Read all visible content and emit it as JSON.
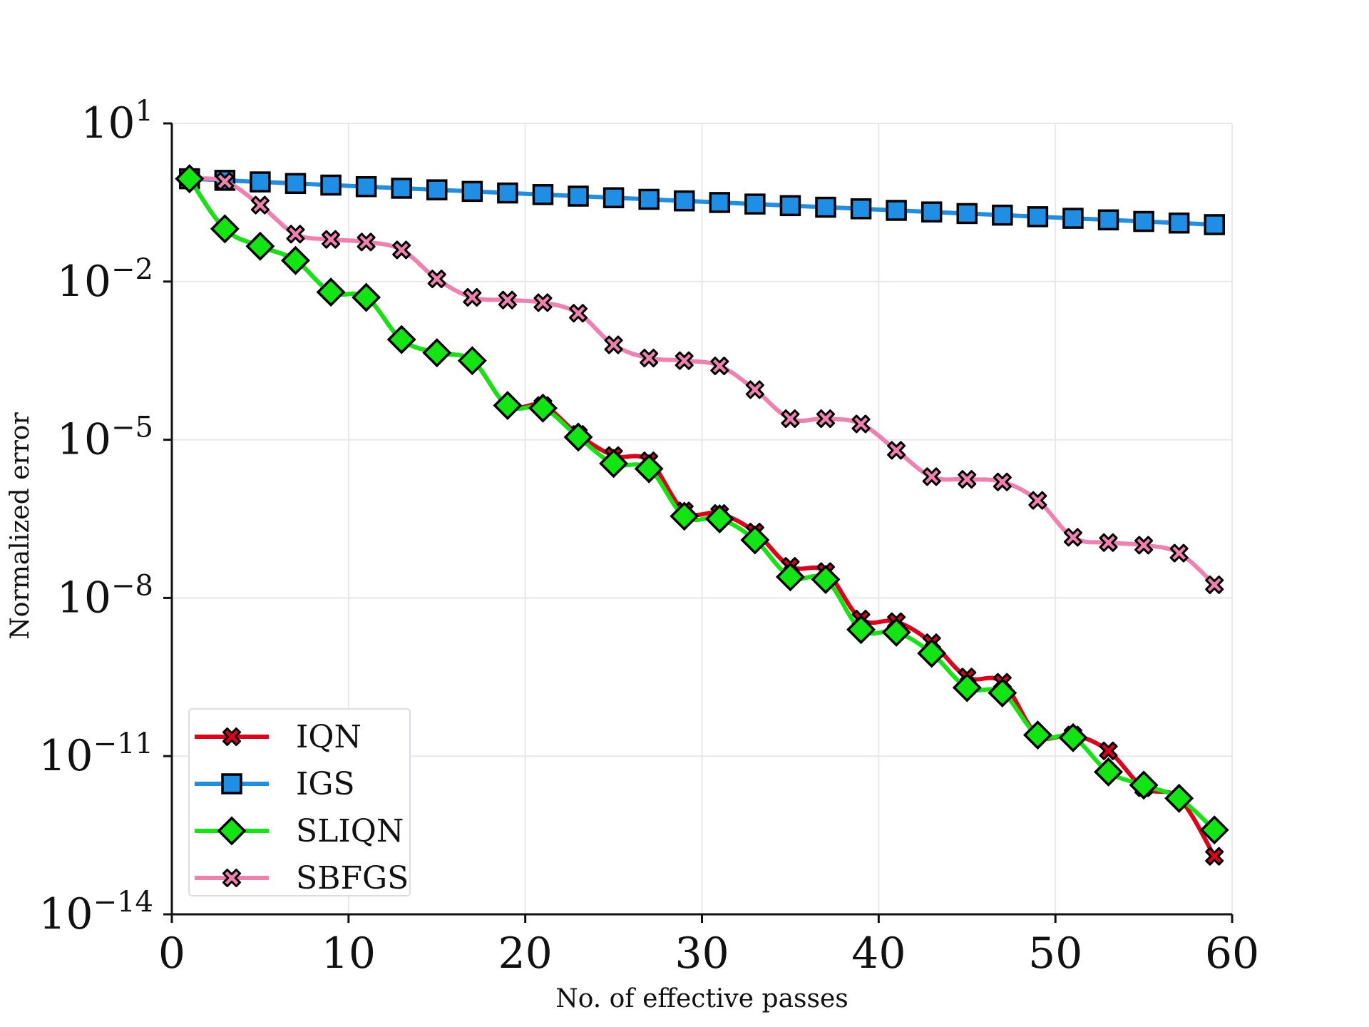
{
  "chart_data": {
    "type": "line",
    "title": "",
    "xlabel": "No. of effective passes",
    "ylabel": "Normalized error",
    "x_scale": "linear",
    "y_scale": "log",
    "xlim": [
      0,
      60
    ],
    "ylim_exponent": [
      -14,
      1
    ],
    "x_ticks": [
      "0",
      "10",
      "20",
      "30",
      "40",
      "50",
      "60"
    ],
    "x_tick_values": [
      0,
      10,
      20,
      30,
      40,
      50,
      60
    ],
    "y_ticks": [
      {
        "base": "10",
        "exp": "1",
        "value_exp": 1
      },
      {
        "base": "10",
        "exp": "−2",
        "value_exp": -2
      },
      {
        "base": "10",
        "exp": "−5",
        "value_exp": -5
      },
      {
        "base": "10",
        "exp": "−8",
        "value_exp": -8
      },
      {
        "base": "10",
        "exp": "−11",
        "value_exp": -11
      },
      {
        "base": "10",
        "exp": "−14",
        "value_exp": -14
      }
    ],
    "grid": true,
    "legend_position": "bottom-left",
    "x": [
      1,
      3,
      5,
      7,
      9,
      11,
      13,
      15,
      17,
      19,
      21,
      23,
      25,
      27,
      29,
      31,
      33,
      35,
      37,
      39,
      41,
      43,
      45,
      47,
      49,
      51,
      53,
      55,
      57,
      59
    ],
    "series": [
      {
        "name": "IQN",
        "color": "#e0001a",
        "marker": "x",
        "log10_values": [
          -0.05,
          -1.0,
          -1.33,
          -1.6,
          -2.2,
          -2.3,
          -3.1,
          -3.35,
          -3.5,
          -4.35,
          -4.35,
          -4.9,
          -5.3,
          -5.4,
          -6.35,
          -6.4,
          -6.75,
          -7.4,
          -7.5,
          -8.4,
          -8.45,
          -8.85,
          -9.5,
          -9.6,
          -10.6,
          -10.6,
          -10.9,
          -11.6,
          -11.8,
          -12.9
        ]
      },
      {
        "name": "IGS",
        "color": "#1f8fe6",
        "marker": "square",
        "log10_values": [
          -0.05,
          -0.08,
          -0.11,
          -0.14,
          -0.17,
          -0.2,
          -0.23,
          -0.26,
          -0.29,
          -0.32,
          -0.35,
          -0.38,
          -0.41,
          -0.44,
          -0.47,
          -0.5,
          -0.53,
          -0.56,
          -0.59,
          -0.62,
          -0.65,
          -0.68,
          -0.71,
          -0.74,
          -0.77,
          -0.8,
          -0.83,
          -0.86,
          -0.89,
          -0.92
        ]
      },
      {
        "name": "SLIQN",
        "color": "#12e612",
        "marker": "diamond",
        "log10_values": [
          -0.05,
          -1.0,
          -1.33,
          -1.6,
          -2.2,
          -2.3,
          -3.1,
          -3.35,
          -3.5,
          -4.35,
          -4.4,
          -4.95,
          -5.45,
          -5.55,
          -6.45,
          -6.5,
          -6.9,
          -7.6,
          -7.65,
          -8.6,
          -8.65,
          -9.05,
          -9.7,
          -9.8,
          -10.6,
          -10.65,
          -11.3,
          -11.55,
          -11.8,
          -12.4
        ]
      },
      {
        "name": "SBFGS",
        "color": "#f080b0",
        "marker": "x",
        "log10_values": [
          -0.05,
          -0.1,
          -0.55,
          -1.1,
          -1.2,
          -1.25,
          -1.4,
          -1.95,
          -2.3,
          -2.35,
          -2.4,
          -2.6,
          -3.2,
          -3.45,
          -3.5,
          -3.6,
          -4.05,
          -4.6,
          -4.6,
          -4.7,
          -5.2,
          -5.7,
          -5.75,
          -5.8,
          -6.15,
          -6.85,
          -6.95,
          -7.0,
          -7.15,
          -7.75
        ]
      }
    ]
  }
}
